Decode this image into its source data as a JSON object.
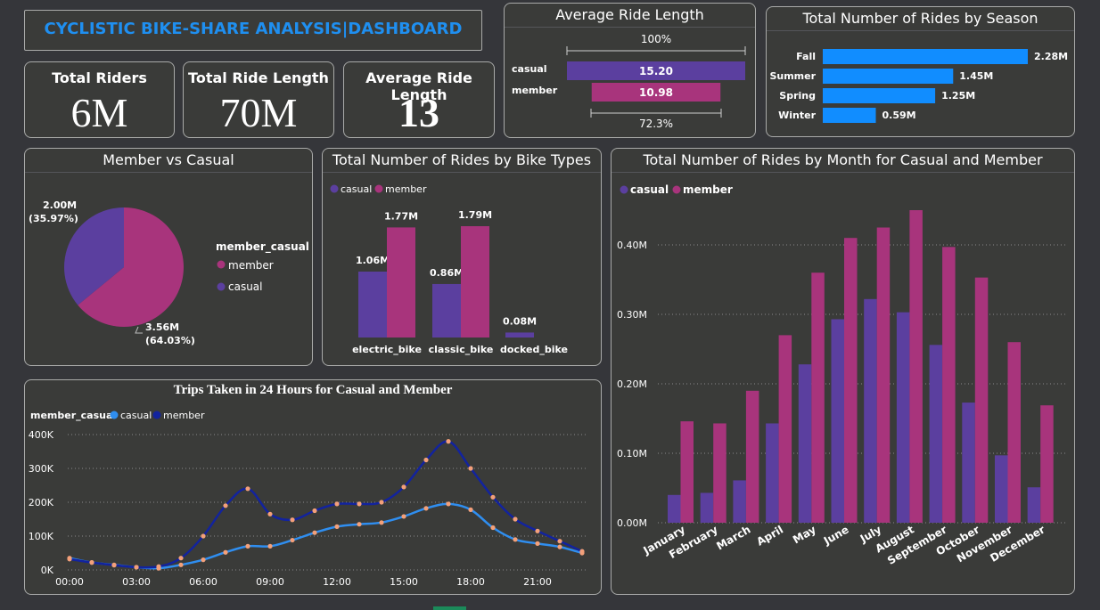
{
  "header": {
    "title": "CYCLISTIC BIKE-SHARE ANALYSIS|DASHBOARD"
  },
  "kpis": [
    {
      "label": "Total Riders",
      "value": "6M"
    },
    {
      "label": "Total Ride Length",
      "value": "70M"
    },
    {
      "label": "Average Ride Length",
      "value": "13"
    }
  ],
  "colors": {
    "casual": "#5b3f9f",
    "member": "#a8347c",
    "season": "#118dff",
    "line_casual": "#2f8ef0",
    "line_member": "#12239e",
    "marker": "#f3a07a"
  },
  "chart_data": [
    {
      "id": "funnel",
      "type": "bar",
      "title": "Average Ride Length",
      "top_label": "100%",
      "bottom_label": "72.3%",
      "categories": [
        "casual",
        "member"
      ],
      "values": [
        15.2,
        10.98
      ],
      "value_labels": [
        "15.20",
        "10.98"
      ]
    },
    {
      "id": "season",
      "type": "bar",
      "title": "Total Number of Rides by Season",
      "categories": [
        "Fall",
        "Summer",
        "Spring",
        "Winter"
      ],
      "values": [
        2.28,
        1.45,
        1.25,
        0.59
      ],
      "value_labels": [
        "2.28M",
        "1.45M",
        "1.25M",
        "0.59M"
      ]
    },
    {
      "id": "pie",
      "type": "pie",
      "title": "Member vs Casual",
      "legend_title": "member_casual",
      "slices": [
        {
          "name": "member",
          "value": 3.56,
          "label": "3.56M",
          "pct": "(64.03%)"
        },
        {
          "name": "casual",
          "value": 2.0,
          "label": "2.00M",
          "pct": "(35.97%)"
        }
      ]
    },
    {
      "id": "biketype",
      "type": "bar",
      "title": "Total Number of Rides by Bike Types",
      "categories": [
        "electric_bike",
        "classic_bike",
        "docked_bike"
      ],
      "series": [
        {
          "name": "casual",
          "values": [
            1.06,
            0.86,
            0.08
          ],
          "labels": [
            "1.06M",
            "0.86M",
            "0.08M"
          ]
        },
        {
          "name": "member",
          "values": [
            1.77,
            1.79,
            0
          ],
          "labels": [
            "1.77M",
            "1.79M",
            ""
          ]
        }
      ]
    },
    {
      "id": "hourly",
      "type": "line",
      "title": "Trips Taken in 24 Hours for Casual and Member",
      "legend_title": "member_casual",
      "x": [
        0,
        1,
        2,
        3,
        4,
        5,
        6,
        7,
        8,
        9,
        10,
        11,
        12,
        13,
        14,
        15,
        16,
        17,
        18,
        19,
        20,
        21,
        22,
        23
      ],
      "xticks": [
        "00:00",
        "03:00",
        "06:00",
        "09:00",
        "12:00",
        "15:00",
        "18:00",
        "21:00"
      ],
      "yticks": [
        "0K",
        "100K",
        "200K",
        "300K",
        "400K"
      ],
      "ylim": [
        0,
        400000
      ],
      "series": [
        {
          "name": "casual",
          "values": [
            35000,
            22000,
            15000,
            8000,
            5000,
            15000,
            30000,
            52000,
            70000,
            70000,
            88000,
            110000,
            128000,
            135000,
            140000,
            158000,
            182000,
            195000,
            178000,
            125000,
            90000,
            78000,
            68000,
            50000
          ]
        },
        {
          "name": "member",
          "values": [
            32000,
            22000,
            14000,
            8000,
            10000,
            35000,
            100000,
            190000,
            240000,
            165000,
            148000,
            175000,
            195000,
            195000,
            200000,
            245000,
            325000,
            380000,
            300000,
            215000,
            150000,
            115000,
            85000,
            55000
          ]
        }
      ]
    },
    {
      "id": "monthly",
      "type": "bar",
      "title": "Total Number of Rides by Month for Casual and Member",
      "categories": [
        "January",
        "February",
        "March",
        "April",
        "May",
        "June",
        "July",
        "August",
        "September",
        "October",
        "November",
        "December"
      ],
      "yticks": [
        "0.00M",
        "0.10M",
        "0.20M",
        "0.30M",
        "0.40M"
      ],
      "ylim": [
        0,
        0.45
      ],
      "series": [
        {
          "name": "casual",
          "values": [
            0.04,
            0.043,
            0.061,
            0.143,
            0.228,
            0.293,
            0.322,
            0.303,
            0.256,
            0.173,
            0.097,
            0.051
          ]
        },
        {
          "name": "member",
          "values": [
            0.146,
            0.143,
            0.19,
            0.27,
            0.36,
            0.41,
            0.425,
            0.45,
            0.397,
            0.353,
            0.26,
            0.169
          ]
        }
      ]
    }
  ]
}
